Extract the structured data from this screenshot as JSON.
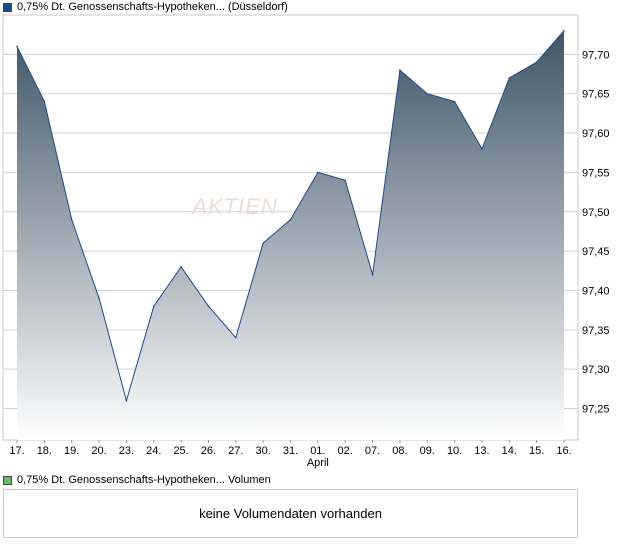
{
  "legend": {
    "price_label": "0,75% Dt. Genossenschafts-Hypotheken... (Düsseldorf)",
    "volume_label": "0,75% Dt. Genossenschafts-Hypotheken... Volumen",
    "price_color": "#1e4a8a",
    "volume_color": "#66bb66"
  },
  "watermark": "AKTIEN",
  "volume_message": "keine Volumendaten vorhanden",
  "chart_data": {
    "type": "area",
    "categories": [
      "17.",
      "18.",
      "19.",
      "20.",
      "23.",
      "24.",
      "25.",
      "26.",
      "27.",
      "30.",
      "31.",
      "01.",
      "02.",
      "07.",
      "08.",
      "09.",
      "10.",
      "13.",
      "14.",
      "15.",
      "16."
    ],
    "month_label": "April",
    "month_label_under": "01.",
    "series": [
      {
        "values": [
          97.71,
          97.64,
          97.49,
          97.39,
          97.26,
          97.38,
          97.43,
          97.38,
          97.34,
          97.46,
          97.49,
          97.55,
          97.54,
          97.42,
          97.68,
          97.65,
          97.64,
          97.58,
          97.67,
          97.69,
          97.73
        ],
        "line_color": "#1e4a8a",
        "fill_top": "#3f5566",
        "fill_bottom": "#ffffff"
      }
    ],
    "y_ticks": [
      "97,25",
      "97,30",
      "97,35",
      "97,40",
      "97,45",
      "97,50",
      "97,55",
      "97,60",
      "97,65",
      "97,70"
    ],
    "ylim": [
      97.21,
      97.75
    ],
    "grid": true,
    "grid_color": "#d0d0d0"
  }
}
